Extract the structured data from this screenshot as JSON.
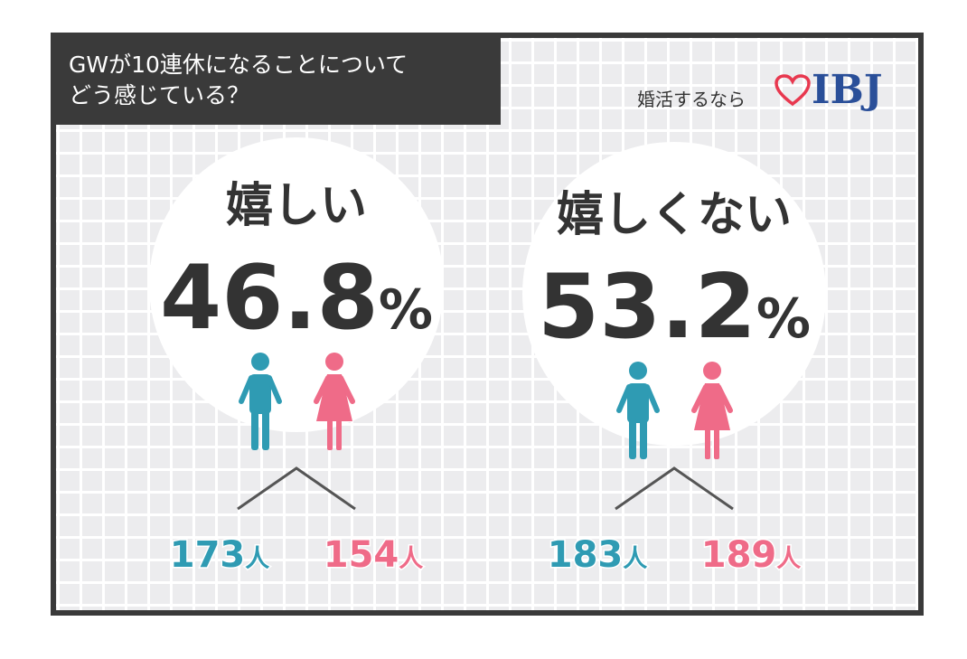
{
  "title_lines": [
    "GWが10連休になることについて",
    "どう感じている？"
  ],
  "logo": {
    "text": "婚活するなら",
    "brand": "IBJ",
    "heart_color": "#e8384f",
    "brand_color": "#2a4f99"
  },
  "colors": {
    "male": "#2f9bb3",
    "female": "#ef6b88",
    "number": "#333333"
  },
  "chart_data": {
    "type": "bar",
    "categories": [
      "嬉しい",
      "嬉しくない"
    ],
    "values": [
      46.8,
      53.2
    ],
    "value_labels": [
      "46.8",
      "53.2"
    ],
    "unit": "%",
    "breakdown": [
      {
        "category": "嬉しい",
        "male": 173,
        "female": 154
      },
      {
        "category": "嬉しくない",
        "male": 183,
        "female": 189
      }
    ],
    "count_unit": "人"
  }
}
